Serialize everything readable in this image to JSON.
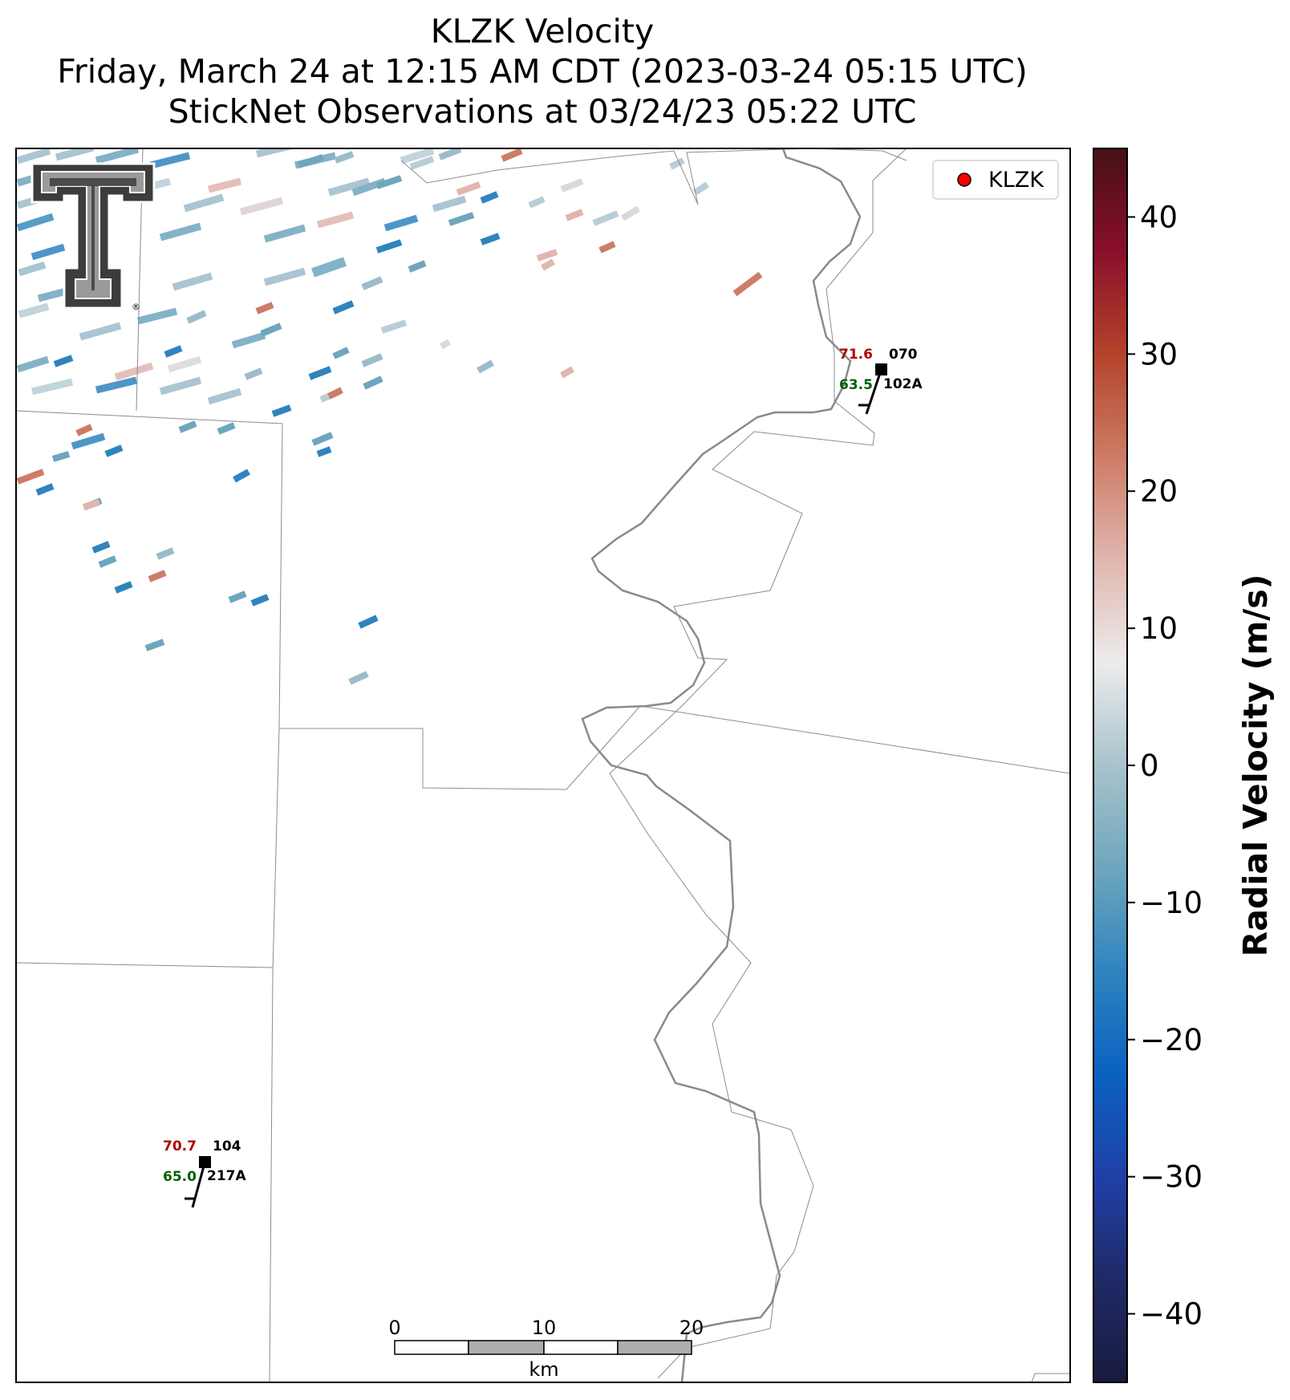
{
  "title": {
    "line1": "KLZK Velocity",
    "line2": "Friday, March 24 at 12:15 AM CDT (2023-03-24 05:15 UTC)",
    "line3": "StickNet Observations at 03/24/23 05:22 UTC"
  },
  "legend": {
    "label": "KLZK",
    "marker_color": "#ff0000"
  },
  "stations": [
    {
      "id": "102A",
      "temp": "71.6",
      "dewpoint": "63.5",
      "pressure": "070"
    },
    {
      "id": "217A",
      "temp": "70.7",
      "dewpoint": "65.0",
      "pressure": "104"
    }
  ],
  "scale_bar": {
    "ticks": [
      "0",
      "10",
      "20"
    ],
    "unit": "km"
  },
  "colorbar": {
    "label": "Radial Velocity (m/s)",
    "min": -45,
    "max": 45,
    "ticks": [
      "40",
      "30",
      "20",
      "10",
      "0",
      "−10",
      "−20",
      "−30",
      "−40"
    ],
    "colors": [
      "#451016",
      "#8a0f2b",
      "#b4432a",
      "#cd7c66",
      "#e0b6ae",
      "#ececec",
      "#a8c3cc",
      "#6ea6bd",
      "#2f84be",
      "#0a62c0",
      "#2040a8",
      "#1f2a66",
      "#191b3e"
    ]
  },
  "logo": {
    "icon": "texas-tech-double-t-logo"
  }
}
